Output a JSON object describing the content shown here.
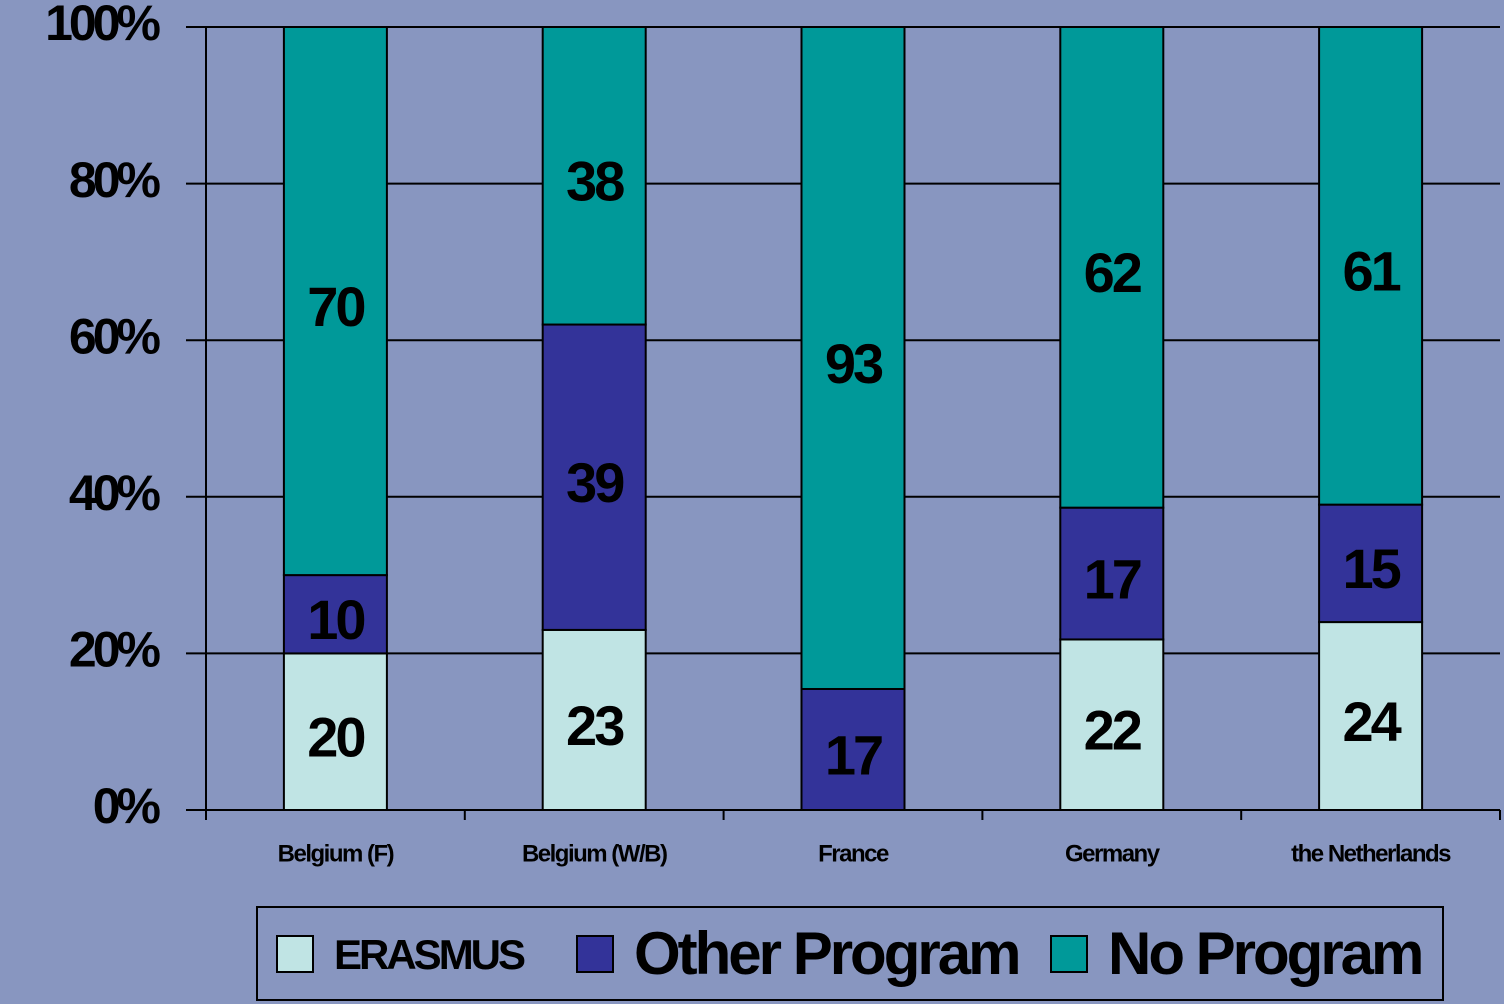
{
  "chart_data": {
    "type": "bar",
    "stacking": "percent",
    "categories": [
      "Belgium (F)",
      "Belgium (W/B)",
      "France",
      "Germany",
      "the Netherlands"
    ],
    "series": [
      {
        "name": "ERASMUS",
        "color": "#c0e4e4",
        "values": [
          20,
          23,
          null,
          22,
          24
        ]
      },
      {
        "name": "Other Program",
        "color": "#333399",
        "values": [
          10,
          39,
          17,
          17,
          15
        ]
      },
      {
        "name": "No Program",
        "color": "#009999",
        "values": [
          70,
          38,
          93,
          62,
          61
        ]
      }
    ],
    "ylim": [
      0,
      100
    ],
    "yticks": [
      {
        "value": 0,
        "label": "0%"
      },
      {
        "value": 20,
        "label": "20%"
      },
      {
        "value": 40,
        "label": "40%"
      },
      {
        "value": 60,
        "label": "60%"
      },
      {
        "value": 80,
        "label": "80%"
      },
      {
        "value": 100,
        "label": "100%"
      }
    ],
    "grid": true,
    "legend": "bottom"
  }
}
